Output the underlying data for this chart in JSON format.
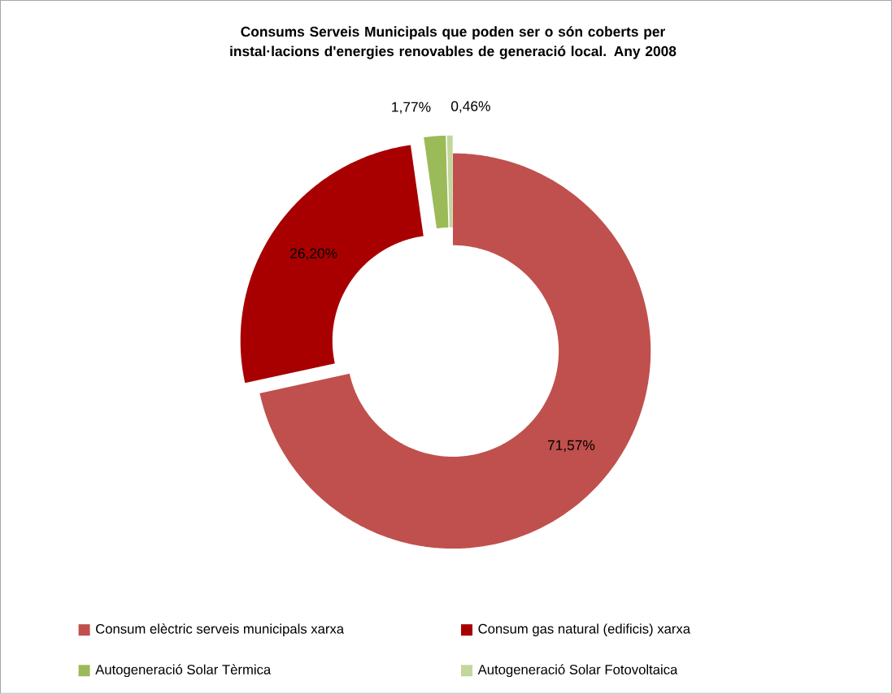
{
  "chart_data": {
    "type": "donut",
    "title": "Consums Serveis Municipals que poden ser o són coberts per instal·lacions d'energies renovables de generació local.  Any 2008",
    "categories": [
      "Consum elèctric serveis municipals xarxa",
      "Consum gas natural (edificis) xarxa",
      "Autogeneració Solar Tèrmica",
      "Autogeneració Solar Fotovoltaica"
    ],
    "values": [
      71.57,
      26.2,
      1.77,
      0.46
    ],
    "value_labels": [
      "71,57%",
      "26,20%",
      "1,77%",
      "0,46%"
    ],
    "colors": [
      "#c0504d",
      "#a80000",
      "#9bbb59",
      "#c3d69b"
    ],
    "legend": "bottom"
  }
}
